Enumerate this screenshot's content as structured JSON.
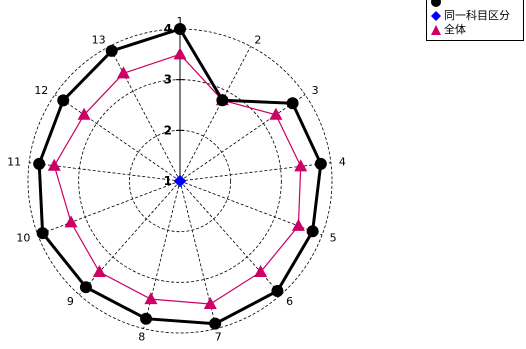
{
  "colors": {
    "series_1": "#000000",
    "series_2": "#0000ff",
    "series_3": "#cc0066"
  },
  "chart_data": {
    "type": "radar",
    "categories": [
      "1",
      "2",
      "3",
      "4",
      "5",
      "6",
      "7",
      "8",
      "9",
      "10",
      "11",
      "12",
      "13"
    ],
    "radial_ticks": [
      "1",
      "2",
      "3",
      "4"
    ],
    "rlim": [
      1,
      4
    ],
    "grid": true,
    "legend_position": "top-right",
    "series": [
      {
        "name": "",
        "marker": "circle",
        "line": true,
        "values": [
          4.0,
          2.8,
          3.7,
          3.8,
          3.8,
          3.9,
          3.9,
          3.8,
          3.8,
          3.9,
          3.8,
          3.8,
          3.9
        ]
      },
      {
        "name": "同一科目区分",
        "marker": "diamond",
        "line": false,
        "values": [
          1,
          1,
          1,
          1,
          1,
          1,
          1,
          1,
          1,
          1,
          1,
          1,
          1
        ]
      },
      {
        "name": "全体",
        "marker": "triangle",
        "line": true,
        "values": [
          3.5,
          2.8,
          3.3,
          3.4,
          3.5,
          3.4,
          3.5,
          3.4,
          3.4,
          3.3,
          3.5,
          3.3,
          3.4
        ]
      }
    ]
  }
}
